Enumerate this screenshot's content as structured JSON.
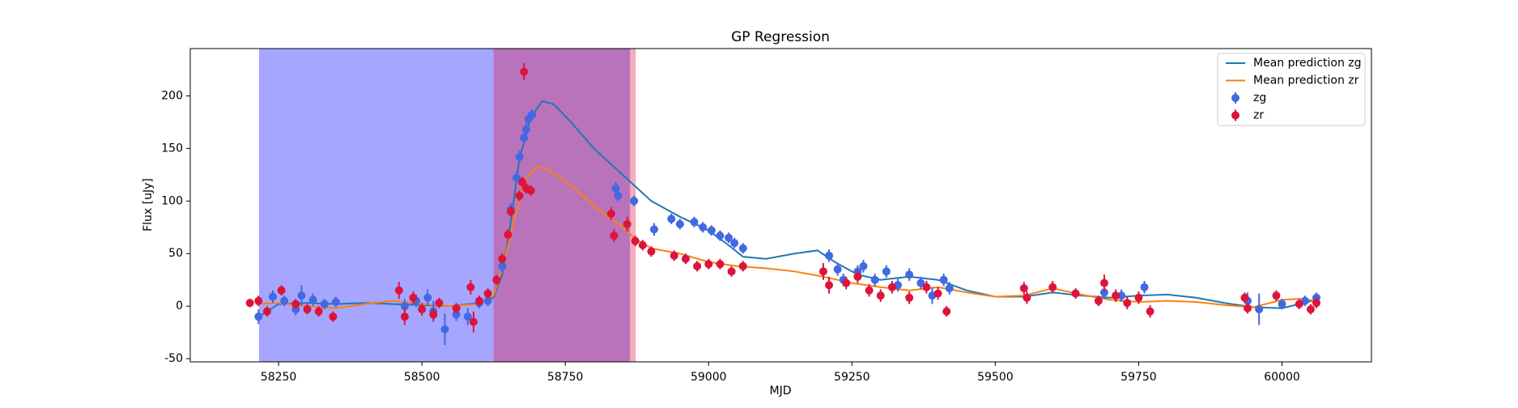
{
  "chart_data": {
    "type": "line",
    "title": "GP Regression",
    "x_label": "MJD",
    "y_label": "Flux [uJy]",
    "xlim": [
      58096,
      60156
    ],
    "ylim": [
      -53,
      245
    ],
    "xticks": [
      58250,
      58500,
      58750,
      59000,
      59250,
      59500,
      59750,
      60000
    ],
    "yticks": [
      -50,
      0,
      50,
      100,
      150,
      200
    ],
    "legend": "upper right",
    "spans": [
      {
        "x0": 58216,
        "x1": 58863,
        "color": "#0000ff"
      },
      {
        "x0": 58625,
        "x1": 58873,
        "color": "#dc143c"
      }
    ],
    "series": [
      {
        "name": "Mean prediction zg",
        "kind": "line",
        "color": "#1f77b4",
        "x": [
          58210,
          58230,
          58250,
          58300,
          58350,
          58400,
          58450,
          58500,
          58550,
          58600,
          58625,
          58640,
          58655,
          58670,
          58690,
          58710,
          58730,
          58760,
          58800,
          58850,
          58900,
          58950,
          59000,
          59030,
          59060,
          59100,
          59150,
          59190,
          59220,
          59260,
          59300,
          59350,
          59400,
          59450,
          59500,
          59550,
          59600,
          59650,
          59700,
          59750,
          59800,
          59850,
          59900,
          59950,
          60000,
          60030,
          60060
        ],
        "values": [
          -12,
          -5,
          2,
          3,
          2,
          3,
          2,
          1,
          0,
          3,
          8,
          30,
          80,
          140,
          180,
          195,
          192,
          175,
          150,
          125,
          100,
          85,
          72,
          60,
          47,
          45,
          50,
          53,
          42,
          30,
          25,
          28,
          25,
          15,
          9,
          9,
          13,
          10,
          8,
          10,
          11,
          8,
          3,
          -1,
          -2,
          2,
          6
        ]
      },
      {
        "name": "Mean prediction zr",
        "kind": "line",
        "color": "#ff7f0e",
        "x": [
          58210,
          58250,
          58300,
          58350,
          58400,
          58450,
          58500,
          58550,
          58600,
          58625,
          58640,
          58660,
          58680,
          58700,
          58720,
          58760,
          58800,
          58850,
          58870,
          58900,
          58950,
          59000,
          59050,
          59100,
          59150,
          59200,
          59250,
          59300,
          59350,
          59400,
          59450,
          59500,
          59550,
          59600,
          59650,
          59700,
          59750,
          59800,
          59850,
          59900,
          59950,
          60000,
          60030,
          60060
        ],
        "values": [
          2,
          3,
          0,
          -2,
          2,
          5,
          2,
          0,
          2,
          10,
          35,
          80,
          120,
          133,
          130,
          115,
          95,
          75,
          65,
          55,
          50,
          42,
          38,
          36,
          33,
          28,
          22,
          18,
          15,
          18,
          13,
          9,
          10,
          17,
          11,
          6,
          4,
          5,
          4,
          1,
          -1,
          6,
          7,
          5
        ]
      },
      {
        "name": "zg",
        "kind": "points",
        "color": "#4169e1",
        "x": [
          58215,
          58240,
          58260,
          58280,
          58290,
          58310,
          58330,
          58350,
          58470,
          58490,
          58510,
          58520,
          58540,
          58560,
          58580,
          58600,
          58615,
          58640,
          58655,
          58665,
          58670,
          58678,
          58682,
          58686,
          58692,
          58838,
          58842,
          58870,
          58905,
          58935,
          58950,
          58975,
          58990,
          59005,
          59020,
          59035,
          59045,
          59060,
          59210,
          59225,
          59235,
          59260,
          59270,
          59290,
          59310,
          59330,
          59350,
          59370,
          59390,
          59410,
          59420,
          59690,
          59720,
          59760,
          59940,
          59960,
          60000,
          60040,
          60060
        ],
        "values": [
          -10,
          9,
          5,
          -3,
          10,
          6,
          2,
          4,
          0,
          5,
          8,
          -5,
          -22,
          -8,
          -10,
          3,
          5,
          38,
          92,
          122,
          142,
          160,
          168,
          178,
          182,
          112,
          105,
          100,
          73,
          83,
          78,
          80,
          75,
          72,
          67,
          65,
          60,
          55,
          48,
          35,
          25,
          33,
          38,
          25,
          33,
          20,
          30,
          22,
          10,
          25,
          17,
          13,
          10,
          18,
          5,
          -3,
          2,
          5,
          8
        ],
        "errors": [
          7,
          6,
          5,
          6,
          10,
          6,
          5,
          5,
          7,
          6,
          8,
          10,
          15,
          6,
          8,
          5,
          5,
          6,
          6,
          6,
          6,
          6,
          6,
          6,
          5,
          6,
          5,
          5,
          6,
          5,
          5,
          5,
          5,
          5,
          5,
          5,
          5,
          5,
          6,
          6,
          6,
          6,
          6,
          6,
          6,
          6,
          6,
          6,
          8,
          6,
          6,
          6,
          6,
          6,
          8,
          15,
          5,
          5,
          5
        ]
      },
      {
        "name": "zr",
        "kind": "points",
        "color": "#dc143c",
        "x": [
          58200,
          58215,
          58230,
          58255,
          58280,
          58300,
          58320,
          58345,
          58460,
          58470,
          58485,
          58500,
          58520,
          58530,
          58560,
          58585,
          58590,
          58600,
          58615,
          58630,
          58640,
          58650,
          58655,
          58670,
          58675,
          58682,
          58690,
          58678,
          58830,
          58835,
          58858,
          58872,
          58885,
          58900,
          58940,
          58960,
          58980,
          59000,
          59020,
          59040,
          59060,
          59200,
          59210,
          59240,
          59260,
          59280,
          59300,
          59320,
          59350,
          59380,
          59400,
          59415,
          59550,
          59555,
          59600,
          59640,
          59680,
          59690,
          59710,
          59730,
          59750,
          59770,
          59935,
          59940,
          59990,
          60030,
          60050,
          60060
        ],
        "values": [
          3,
          5,
          -5,
          15,
          2,
          -3,
          -5,
          -10,
          15,
          -10,
          8,
          -3,
          -8,
          3,
          -2,
          18,
          -15,
          5,
          12,
          25,
          45,
          68,
          90,
          105,
          118,
          112,
          110,
          223,
          88,
          67,
          78,
          62,
          58,
          52,
          48,
          45,
          38,
          40,
          40,
          33,
          38,
          33,
          20,
          22,
          28,
          15,
          10,
          18,
          8,
          18,
          12,
          -5,
          17,
          8,
          18,
          12,
          5,
          22,
          10,
          3,
          8,
          -5,
          8,
          -2,
          10,
          2,
          -3,
          3
        ],
        "errors": [
          4,
          5,
          5,
          5,
          5,
          5,
          5,
          5,
          8,
          8,
          6,
          6,
          6,
          5,
          5,
          7,
          10,
          5,
          5,
          5,
          5,
          5,
          5,
          5,
          5,
          5,
          5,
          8,
          6,
          6,
          7,
          5,
          5,
          5,
          5,
          5,
          5,
          5,
          5,
          5,
          5,
          8,
          8,
          6,
          6,
          6,
          6,
          6,
          6,
          6,
          6,
          5,
          6,
          6,
          6,
          5,
          5,
          8,
          6,
          6,
          6,
          6,
          5,
          5,
          5,
          5,
          5,
          5
        ]
      }
    ]
  }
}
